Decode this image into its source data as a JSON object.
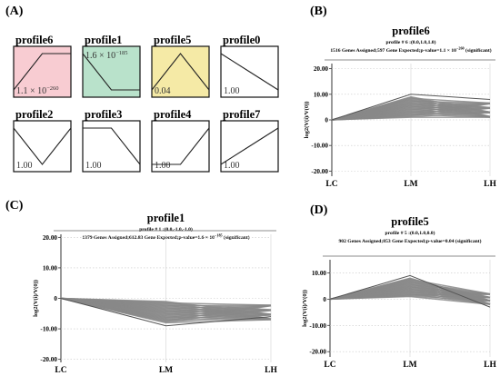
{
  "panel_labels": {
    "a": "(A)",
    "b": "(B)",
    "c": "(C)",
    "d": "(D)"
  },
  "overview": {
    "profiles": [
      {
        "name": "profile6",
        "pvalue": "1.1 × 10",
        "pvalue_exp": "−260",
        "bg": "#f8ccd2",
        "shape": [
          0,
          1,
          1
        ],
        "label_pos": "bottom"
      },
      {
        "name": "profile1",
        "pvalue": "1.6 × 10",
        "pvalue_exp": "−185",
        "bg": "#b9e2cb",
        "shape": [
          0,
          -1,
          -1
        ],
        "label_pos": "top"
      },
      {
        "name": "profile5",
        "pvalue": "0.04",
        "pvalue_exp": "",
        "bg": "#f5eaa6",
        "shape": [
          0,
          1,
          0
        ],
        "label_pos": "bottom"
      },
      {
        "name": "profile0",
        "pvalue": "1.00",
        "pvalue_exp": "",
        "bg": "#ffffff",
        "shape": [
          0,
          -1,
          -2
        ],
        "label_pos": "bottom"
      },
      {
        "name": "profile2",
        "pvalue": "1.00",
        "pvalue_exp": "",
        "bg": "#ffffff",
        "shape": [
          0,
          -1,
          0
        ],
        "label_pos": "bottom"
      },
      {
        "name": "profile3",
        "pvalue": "1.00",
        "pvalue_exp": "",
        "bg": "#ffffff",
        "shape": [
          0,
          0,
          -1
        ],
        "label_pos": "bottom"
      },
      {
        "name": "profile4",
        "pvalue": "1.00",
        "pvalue_exp": "",
        "bg": "#ffffff",
        "shape": [
          0,
          0,
          1
        ],
        "label_pos": "bottom"
      },
      {
        "name": "profile7",
        "pvalue": "1.00",
        "pvalue_exp": "",
        "bg": "#ffffff",
        "shape": [
          0,
          1,
          2
        ],
        "label_pos": "bottom"
      }
    ]
  },
  "chart_data": [
    {
      "type": "line",
      "title": "profile6",
      "info": "profile # 6 :(0.0,1.0,1.0)",
      "info2_pre": "1516 Genes Assigned;597 Gene Expected;p-value=1.1 × 10",
      "info2_exp": "−260",
      "info2_post": " (significant)",
      "ylabel": "log2(V(i)/V(0))",
      "categories": [
        "LC",
        "LM",
        "LH"
      ],
      "yticks": [
        "20.00",
        "10.00",
        "0",
        "-10.00",
        "-20.00"
      ],
      "ylim": [
        -22,
        22
      ],
      "mean_profile": [
        0,
        10,
        8
      ],
      "bundle_range": {
        "LM": [
          1,
          9
        ],
        "LH": [
          1,
          8
        ]
      },
      "series_color": "#888888"
    },
    {
      "type": "line",
      "title": "profile1",
      "info": "profile # 1 :(0.0,-1.0,-1.0)",
      "info2_pre": "1379 Genes Assigned;612.83 Gene Expected;p-value=1.6 × 10",
      "info2_exp": "−185",
      "info2_post": " (significant)",
      "ylabel": "log2(V(i)/V(0))",
      "categories": [
        "LC",
        "LM",
        "LH"
      ],
      "yticks": [
        "20.00",
        "10.00",
        "0",
        "-10.00",
        "-20.00"
      ],
      "ylim": [
        -21,
        21
      ],
      "mean_profile": [
        0,
        -9,
        -6
      ],
      "bundle_range": {
        "LM": [
          -8,
          -1
        ],
        "LH": [
          -7,
          -1
        ]
      },
      "series_color": "#888888"
    },
    {
      "type": "line",
      "title": "profile5",
      "info": "profile # 5 :(0.0,1.0,0.0)",
      "info2_pre": "902 Genes Assigned;853 Gene Expected;p-value=0.04 (significant)",
      "info2_exp": "",
      "info2_post": "",
      "ylabel": "log2(V(i)/V(0))",
      "categories": [
        "LC",
        "LM",
        "LH"
      ],
      "yticks": [
        "10.00",
        "0",
        "-10.00",
        "-20.00"
      ],
      "ylim": [
        -22,
        15
      ],
      "mean_profile": [
        0,
        9,
        -3
      ],
      "bundle_range": {
        "LM": [
          1,
          8
        ],
        "LH": [
          -2,
          3
        ]
      },
      "series_color": "#888888"
    }
  ]
}
